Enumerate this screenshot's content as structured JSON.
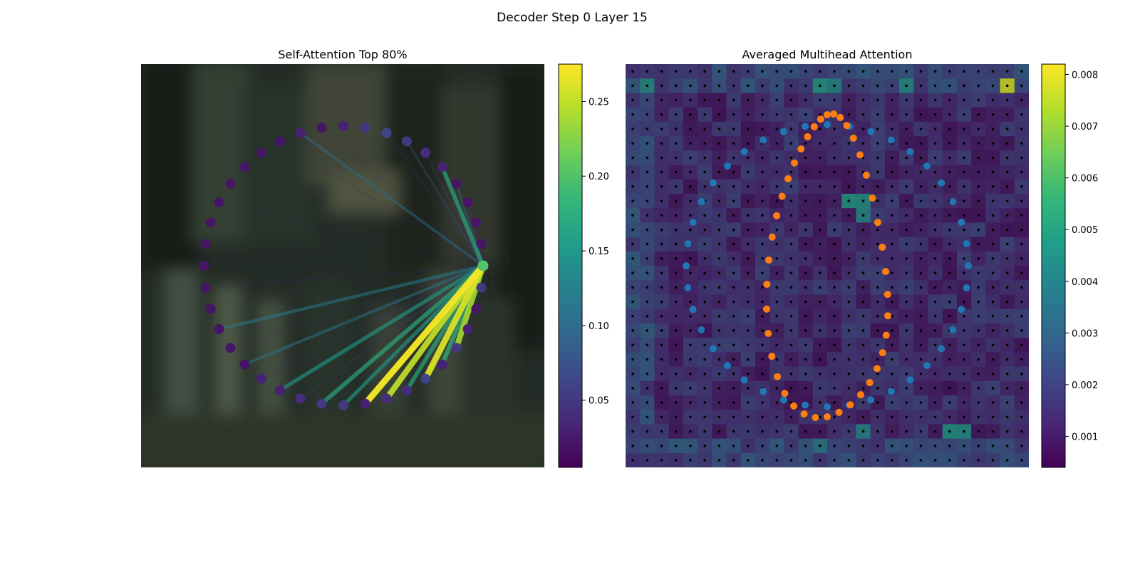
{
  "figure": {
    "suptitle": "Decoder Step 0 Layer 15"
  },
  "colors": {
    "viridis": [
      "#440154",
      "#482878",
      "#3e4989",
      "#31688e",
      "#26828e",
      "#1f9e89",
      "#35b779",
      "#6ece58",
      "#b5de2b",
      "#fde725"
    ],
    "blue_points": "#1f77b4",
    "orange_points": "#ff7f0e",
    "grid_dots": "#000000",
    "background_image": "#28322c"
  },
  "chart_data": [
    {
      "type": "network",
      "title": "Self-Attention Top 80%",
      "nodes": {
        "count": 40,
        "arrangement": "circle",
        "source_index": 0
      },
      "edges": [
        {
          "target": 4,
          "weight": 0.24
        },
        {
          "target": 5,
          "weight": 0.18
        },
        {
          "target": 6,
          "weight": 0.26
        },
        {
          "target": 7,
          "weight": 0.17
        },
        {
          "target": 8,
          "weight": 0.25
        },
        {
          "target": 9,
          "weight": 0.27
        },
        {
          "target": 10,
          "weight": 0.15
        },
        {
          "target": 11,
          "weight": 0.17
        },
        {
          "target": 12,
          "weight": 0.05
        },
        {
          "target": 13,
          "weight": 0.15
        },
        {
          "target": 14,
          "weight": 0.04
        },
        {
          "target": 15,
          "weight": 0.11
        },
        {
          "target": 16,
          "weight": 0.03
        },
        {
          "target": 17,
          "weight": 0.12
        },
        {
          "target": 19,
          "weight": 0.03
        },
        {
          "target": 23,
          "weight": 0.02
        },
        {
          "target": 27,
          "weight": 0.03
        },
        {
          "target": 28,
          "weight": 0.1
        },
        {
          "target": 29,
          "weight": 0.02
        },
        {
          "target": 32,
          "weight": 0.04
        },
        {
          "target": 33,
          "weight": 0.07
        },
        {
          "target": 34,
          "weight": 0.05
        },
        {
          "target": 35,
          "weight": 0.17
        },
        {
          "target": 36,
          "weight": 0.09
        },
        {
          "target": 37,
          "weight": 0.04
        },
        {
          "target": 38,
          "weight": 0.03
        }
      ],
      "node_values": [
        0.2,
        0.05,
        0.02,
        0.03,
        0.05,
        0.03,
        0.06,
        0.04,
        0.04,
        0.03,
        0.05,
        0.05,
        0.04,
        0.03,
        0.03,
        0.02,
        0.02,
        0.02,
        0.02,
        0.02,
        0.02,
        0.02,
        0.02,
        0.02,
        0.02,
        0.02,
        0.02,
        0.02,
        0.03,
        0.02,
        0.03,
        0.05,
        0.06,
        0.05,
        0.04,
        0.03,
        0.02,
        0.02,
        0.02,
        0.02
      ],
      "colorbar": {
        "min": 0.005,
        "max": 0.275,
        "ticks": [
          "0.05",
          "0.10",
          "0.15",
          "0.20",
          "0.25"
        ]
      }
    },
    {
      "type": "heatmap",
      "title": "Averaged Multihead Attention",
      "grid": {
        "rows": 28,
        "cols": 28
      },
      "hot_cells": [
        {
          "row": 1,
          "col": 26,
          "value": 0.0078
        },
        {
          "row": 1,
          "col": 13,
          "value": 0.0046
        },
        {
          "row": 1,
          "col": 14,
          "value": 0.004
        },
        {
          "row": 1,
          "col": 19,
          "value": 0.0042
        },
        {
          "row": 1,
          "col": 1,
          "value": 0.0042
        },
        {
          "row": 9,
          "col": 15,
          "value": 0.0046
        },
        {
          "row": 9,
          "col": 16,
          "value": 0.0044
        },
        {
          "row": 10,
          "col": 16,
          "value": 0.0041
        },
        {
          "row": 25,
          "col": 22,
          "value": 0.0045
        },
        {
          "row": 25,
          "col": 23,
          "value": 0.0043
        },
        {
          "row": 25,
          "col": 16,
          "value": 0.004
        },
        {
          "row": 26,
          "col": 13,
          "value": 0.0036
        }
      ],
      "overlay_series": [
        {
          "name": "",
          "color": "#1f77b4",
          "shape": "circle",
          "count": 40
        },
        {
          "name": "",
          "color": "#ff7f0e",
          "shape": "ellipse",
          "count": 40
        }
      ],
      "colorbar": {
        "min": 0.0004,
        "max": 0.0082,
        "ticks": [
          "0.001",
          "0.002",
          "0.003",
          "0.004",
          "0.005",
          "0.006",
          "0.007",
          "0.008"
        ]
      }
    }
  ]
}
